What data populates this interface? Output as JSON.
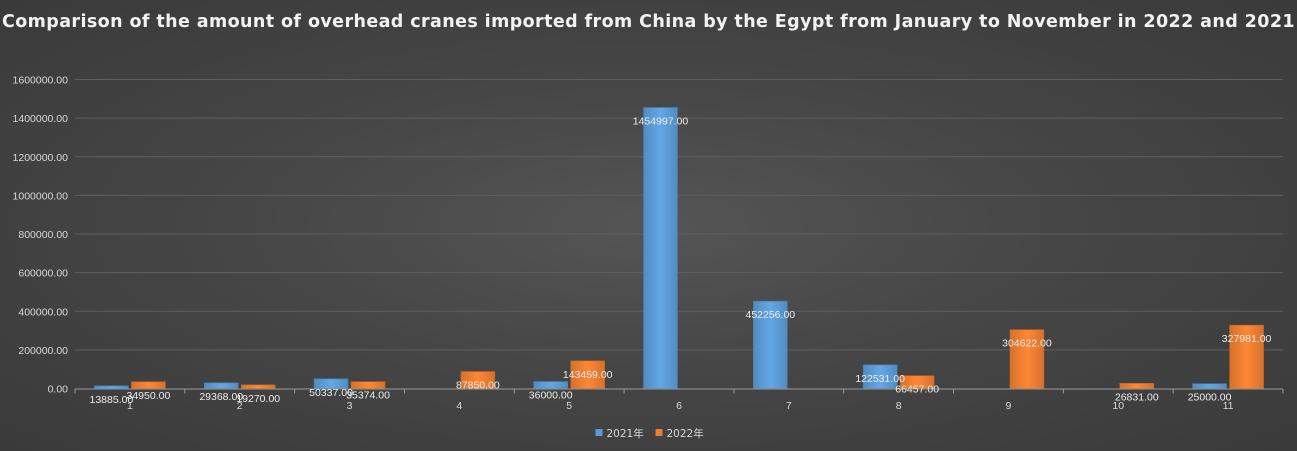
{
  "chart_data": {
    "type": "bar",
    "title": "Comparison of the amount of overhead cranes imported from China by the Egypt from January to November in 2022 and 2021",
    "xlabel": "",
    "ylabel": "",
    "categories": [
      "1",
      "2",
      "3",
      "4",
      "5",
      "6",
      "7",
      "8",
      "9",
      "10",
      "11"
    ],
    "series": [
      {
        "name": "2021年",
        "color": "#5b9bd5",
        "values": [
          13885.0,
          29368.0,
          50337.0,
          null,
          36000.0,
          1454997.0,
          452256.0,
          122531.0,
          null,
          null,
          25000.0
        ],
        "labels": [
          "13885.00",
          "29368.00",
          "50337.00",
          "",
          "36000.00",
          "1454997.00",
          "452256.00",
          "122531.00",
          "",
          "",
          "25000.00"
        ]
      },
      {
        "name": "2022年",
        "color": "#ed7d31",
        "values": [
          34950.0,
          19270.0,
          35374.0,
          87850.0,
          143459.0,
          null,
          null,
          66457.0,
          304622.0,
          26831.0,
          327981.0
        ],
        "labels": [
          "34950.00",
          "19270.00",
          "35374.00",
          "87850.00",
          "143459.00",
          "",
          "",
          "66457.00",
          "304622.00",
          "26831.00",
          "327981.00"
        ]
      }
    ],
    "ylim": [
      0,
      1600000
    ],
    "yticks": [
      "0.00",
      "200000.00",
      "400000.00",
      "600000.00",
      "800000.00",
      "1000000.00",
      "1200000.00",
      "1400000.00",
      "1600000.00"
    ],
    "grid": true,
    "legend_position": "bottom"
  }
}
